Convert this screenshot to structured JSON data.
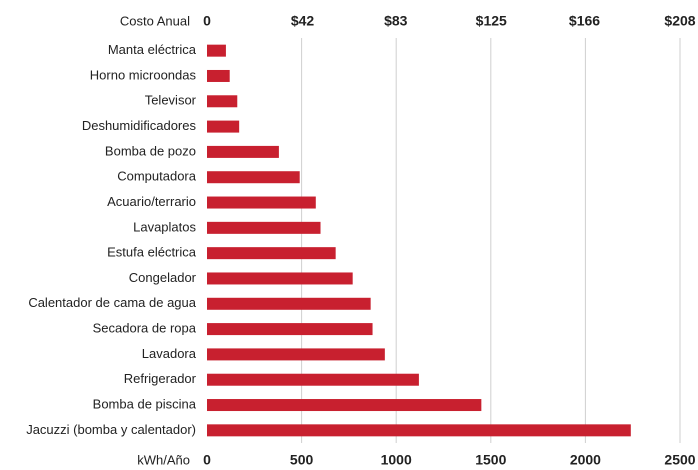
{
  "chart_data": {
    "type": "barh",
    "xlabel": "kWh/Año",
    "x2label": "Costo Anual",
    "categories": [
      "Manta eléctrica",
      "Horno microondas",
      "Televisor",
      "Deshumidificadores",
      "Bomba de pozo",
      "Computadora",
      "Acuario/terrario",
      "Lavaplatos",
      "Estufa eléctrica",
      "Congelador",
      "Calentador de cama de agua",
      "Secadora de ropa",
      "Lavadora",
      "Refrigerador",
      "Bomba de piscina",
      "Jacuzzi (bomba y calentador)"
    ],
    "values": [
      100,
      120,
      160,
      170,
      380,
      490,
      575,
      600,
      680,
      770,
      865,
      875,
      940,
      1120,
      1450,
      2240
    ],
    "color": "#c8202f",
    "xlim": [
      0,
      2500
    ],
    "xticks": [
      0,
      500,
      1000,
      1500,
      2000,
      2500
    ],
    "x2lim": [
      0,
      208
    ],
    "x2ticks": [
      0,
      {
        "value": 42,
        "label": "$42"
      },
      {
        "value": 83,
        "label": "$83"
      },
      {
        "value": 125,
        "label": "$125"
      },
      {
        "value": 166,
        "label": "$166"
      },
      {
        "value": 208,
        "label": "$208"
      }
    ],
    "grid": true
  }
}
